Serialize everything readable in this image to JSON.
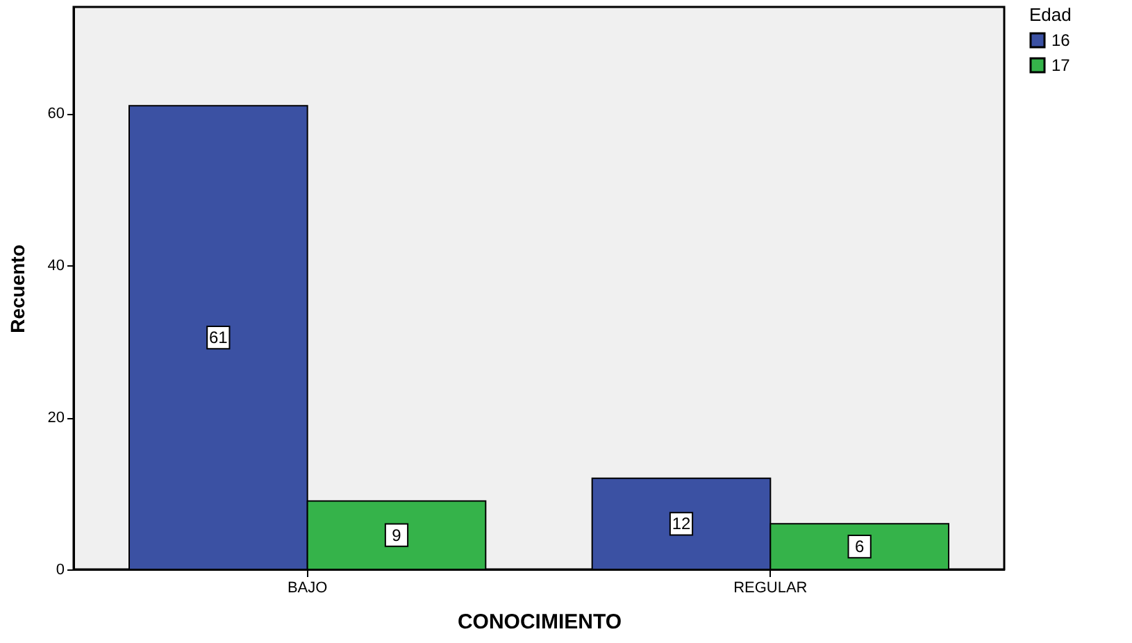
{
  "chart_data": {
    "type": "bar",
    "xlabel": "CONOCIMIENTO",
    "ylabel": "Recuento",
    "legend_title": "Edad",
    "categories": [
      "BAJO",
      "REGULAR"
    ],
    "series": [
      {
        "name": "16",
        "color": "#3b51a3",
        "values": [
          61,
          12
        ]
      },
      {
        "name": "17",
        "color": "#35b34a",
        "values": [
          9,
          6
        ]
      }
    ],
    "ylim": [
      0,
      74
    ],
    "yticks": [
      0,
      20,
      40,
      60
    ],
    "grid": false,
    "legend": "top right",
    "data_labels": true
  }
}
